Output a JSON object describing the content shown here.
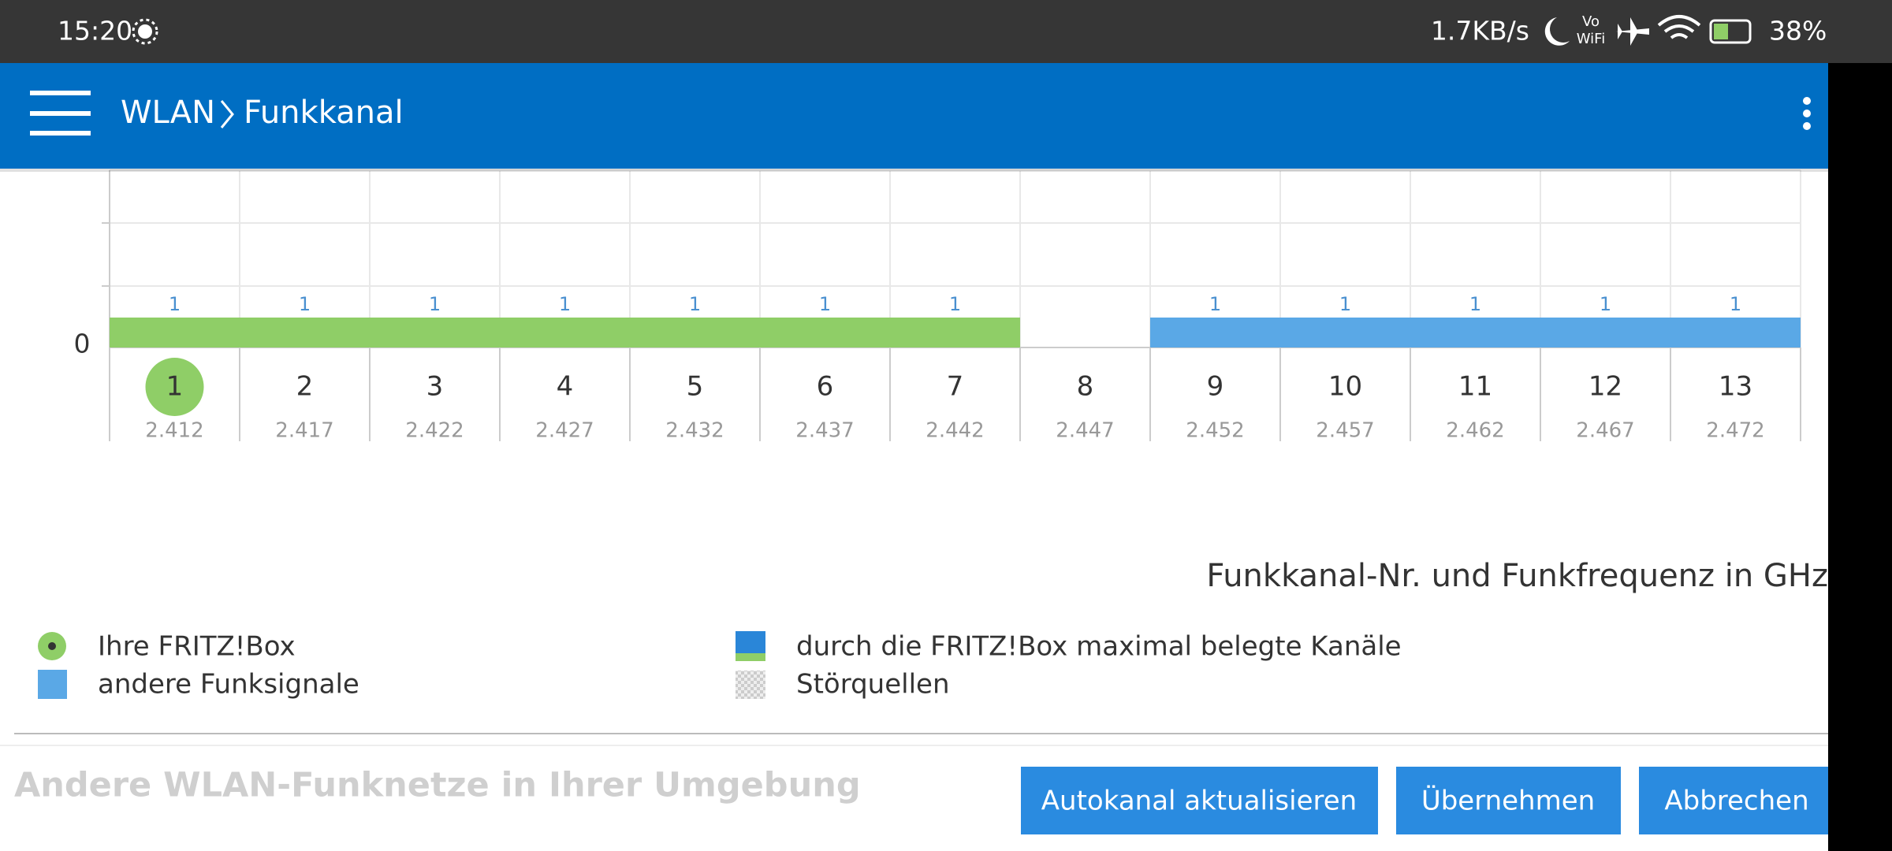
{
  "status_bar": {
    "time": "15:20",
    "network_speed": "1.7KB/s",
    "wifi_label": [
      "Vo",
      "WiFi"
    ],
    "battery": "38%"
  },
  "app_bar": {
    "breadcrumb": [
      "WLAN",
      "Funkkanal"
    ]
  },
  "chart": {
    "y_tick": 0,
    "channels": [
      {
        "number": "1",
        "frequency": "2.412",
        "networks": 1,
        "source": "fritzbox",
        "highlighted": true
      },
      {
        "number": "2",
        "frequency": "2.417",
        "networks": 1,
        "source": "fritzbox"
      },
      {
        "number": "3",
        "frequency": "2.422",
        "networks": 1,
        "source": "fritzbox"
      },
      {
        "number": "4",
        "frequency": "2.427",
        "networks": 1,
        "source": "fritzbox"
      },
      {
        "number": "5",
        "frequency": "2.432",
        "networks": 1,
        "source": "fritzbox"
      },
      {
        "number": "6",
        "frequency": "2.437",
        "networks": 1,
        "source": "fritzbox"
      },
      {
        "number": "7",
        "frequency": "2.442",
        "networks": 1,
        "source": "fritzbox"
      },
      {
        "number": "8",
        "frequency": "2.447",
        "networks": null,
        "source": null
      },
      {
        "number": "9",
        "frequency": "2.452",
        "networks": 1,
        "source": "other"
      },
      {
        "number": "10",
        "frequency": "2.457",
        "networks": 1,
        "source": "other"
      },
      {
        "number": "11",
        "frequency": "2.462",
        "networks": 1,
        "source": "other"
      },
      {
        "number": "12",
        "frequency": "2.467",
        "networks": 1,
        "source": "other"
      },
      {
        "number": "13",
        "frequency": "2.472",
        "networks": 1,
        "source": "other"
      }
    ],
    "colors": {
      "fritzbox": "#8fce67",
      "other": "#5aa8e6"
    },
    "axis_label": "Funkkanal-Nr. und Funkfrequenz in GHz"
  },
  "legend": [
    "Ihre FRITZ!Box",
    "andere Funksignale",
    "durch die FRITZ!Box maximal belegte Kanäle",
    "Störquellen"
  ],
  "section_title": "Andere WLAN-Funknetze in Ihrer Umgebung",
  "buttons": [
    "Autokanal aktualisieren",
    "Übernehmen",
    "Abbrechen"
  ]
}
